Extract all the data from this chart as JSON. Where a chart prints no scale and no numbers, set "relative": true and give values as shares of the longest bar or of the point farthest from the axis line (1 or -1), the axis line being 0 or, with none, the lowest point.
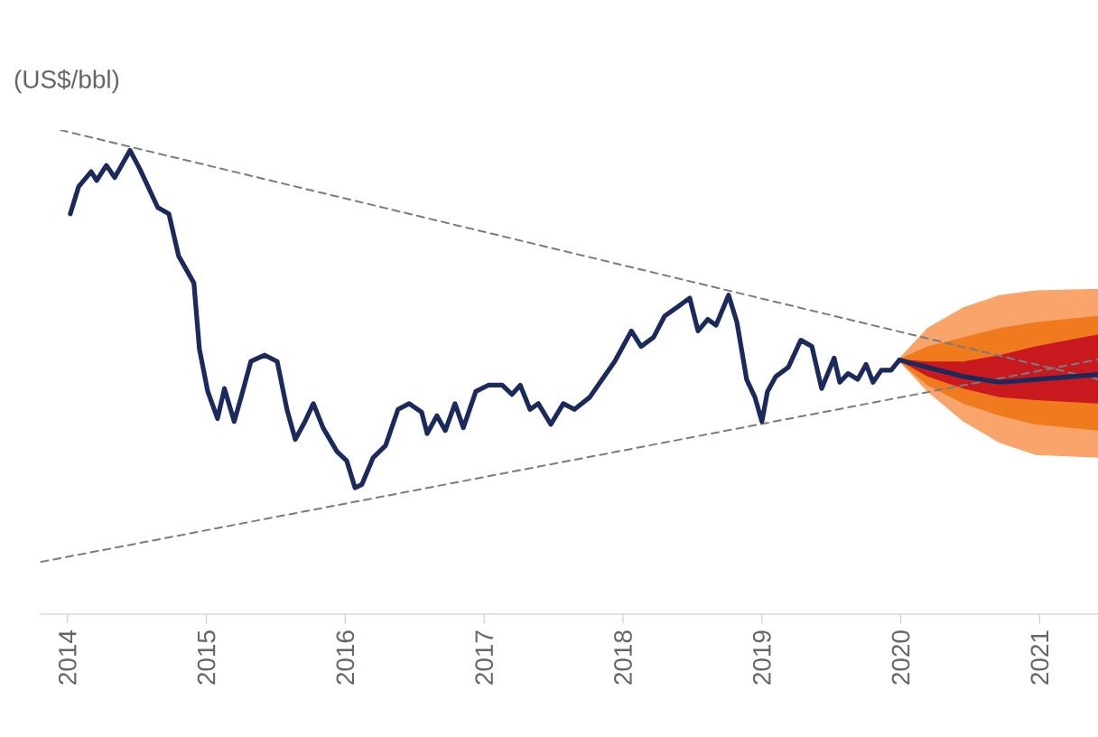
{
  "chart_data": {
    "type": "line",
    "relative": true,
    "ylabel": "(US$/bbl)",
    "xlim": [
      2013.8,
      2021.42
    ],
    "xticks": [
      2014,
      2015,
      2016,
      2017,
      2018,
      2019,
      2020,
      2021
    ],
    "series": [
      {
        "type": "area",
        "color": "#f9a46a",
        "x": [
          2019.99,
          2020.19,
          2020.45,
          2020.71,
          2020.97,
          2021.42
        ],
        "values": [
          null,
          null,
          null,
          null,
          null,
          null
        ],
        "lower": [
          0.522,
          0.46,
          0.398,
          0.354,
          0.329,
          0.323
        ],
        "upper": [
          0.529,
          0.591,
          0.634,
          0.659,
          0.669,
          0.672
        ]
      },
      {
        "type": "area",
        "color": "#f07a1e",
        "x": [
          2019.99,
          2020.19,
          2020.45,
          2020.71,
          2020.97,
          2021.42
        ],
        "values": [
          null,
          null,
          null,
          null,
          null,
          null
        ],
        "lower": [
          0.522,
          0.473,
          0.435,
          0.41,
          0.392,
          0.379
        ],
        "upper": [
          0.527,
          0.553,
          0.572,
          0.591,
          0.603,
          0.616
        ]
      },
      {
        "type": "area",
        "color": "#c81a1e",
        "x": [
          2019.99,
          2020.19,
          2020.45,
          2020.71,
          2020.97,
          2021.42
        ],
        "values": [
          null,
          null,
          null,
          null,
          null,
          null
        ],
        "lower": [
          0.524,
          0.491,
          0.466,
          0.448,
          0.442,
          0.435
        ],
        "upper": [
          0.526,
          0.522,
          0.522,
          0.535,
          0.553,
          0.578
        ]
      },
      {
        "color": "#7a7a84",
        "line_style": "dashed",
        "x": [
          2013.95,
          2021.42
        ],
        "values": [
          1.0,
          0.485
        ]
      },
      {
        "color": "#7a7a84",
        "line_style": "dashed",
        "x": [
          2013.81,
          2021.42
        ],
        "values": [
          0.108,
          0.526
        ]
      },
      {
        "color": "#1b2a5c",
        "x": [
          2014.02,
          2014.08,
          2014.17,
          2014.21,
          2014.28,
          2014.34,
          2014.45,
          2014.52,
          2014.58,
          2014.65,
          2014.73,
          2014.8,
          2014.91,
          2014.95,
          2015.01,
          2015.08,
          2015.13,
          2015.2,
          2015.25,
          2015.32,
          2015.42,
          2015.51,
          2015.58,
          2015.64,
          2015.71,
          2015.77,
          2015.84,
          2015.94,
          2016.01,
          2016.07,
          2016.12,
          2016.2,
          2016.29,
          2016.38,
          2016.46,
          2016.55,
          2016.59,
          2016.66,
          2016.72,
          2016.79,
          2016.85,
          2016.94,
          2017.03,
          2017.13,
          2017.2,
          2017.26,
          2017.33,
          2017.39,
          2017.48,
          2017.57,
          2017.65,
          2017.76,
          2017.85,
          2017.94,
          2018.06,
          2018.13,
          2018.22,
          2018.3,
          2018.39,
          2018.48,
          2018.54,
          2018.61,
          2018.67,
          2018.76,
          2018.82,
          2018.89,
          2018.95,
          2019.0,
          2019.04,
          2019.1,
          2019.19,
          2019.28,
          2019.36,
          2019.43,
          2019.52,
          2019.56,
          2019.62,
          2019.69,
          2019.75,
          2019.8,
          2019.86,
          2019.93,
          2019.99
        ],
        "values": [
          0.827,
          0.883,
          0.914,
          0.896,
          0.927,
          0.902,
          0.958,
          0.92,
          0.883,
          0.84,
          0.827,
          0.74,
          0.684,
          0.547,
          0.46,
          0.404,
          0.466,
          0.398,
          0.448,
          0.522,
          0.535,
          0.522,
          0.423,
          0.361,
          0.398,
          0.435,
          0.385,
          0.336,
          0.317,
          0.261,
          0.268,
          0.323,
          0.348,
          0.423,
          0.435,
          0.417,
          0.373,
          0.41,
          0.379,
          0.435,
          0.385,
          0.46,
          0.473,
          0.473,
          0.454,
          0.473,
          0.423,
          0.435,
          0.392,
          0.435,
          0.423,
          0.448,
          0.485,
          0.522,
          0.585,
          0.553,
          0.572,
          0.616,
          0.634,
          0.653,
          0.585,
          0.609,
          0.597,
          0.659,
          0.603,
          0.485,
          0.448,
          0.398,
          0.46,
          0.491,
          0.51,
          0.566,
          0.553,
          0.466,
          0.529,
          0.479,
          0.497,
          0.485,
          0.516,
          0.479,
          0.504,
          0.504,
          0.525
        ]
      },
      {
        "color": "#1b2a5c",
        "x": [
          2019.99,
          2020.19,
          2020.45,
          2020.71,
          2020.97,
          2021.42
        ],
        "values": [
          0.525,
          0.51,
          0.491,
          0.479,
          0.485,
          0.495
        ]
      }
    ]
  }
}
